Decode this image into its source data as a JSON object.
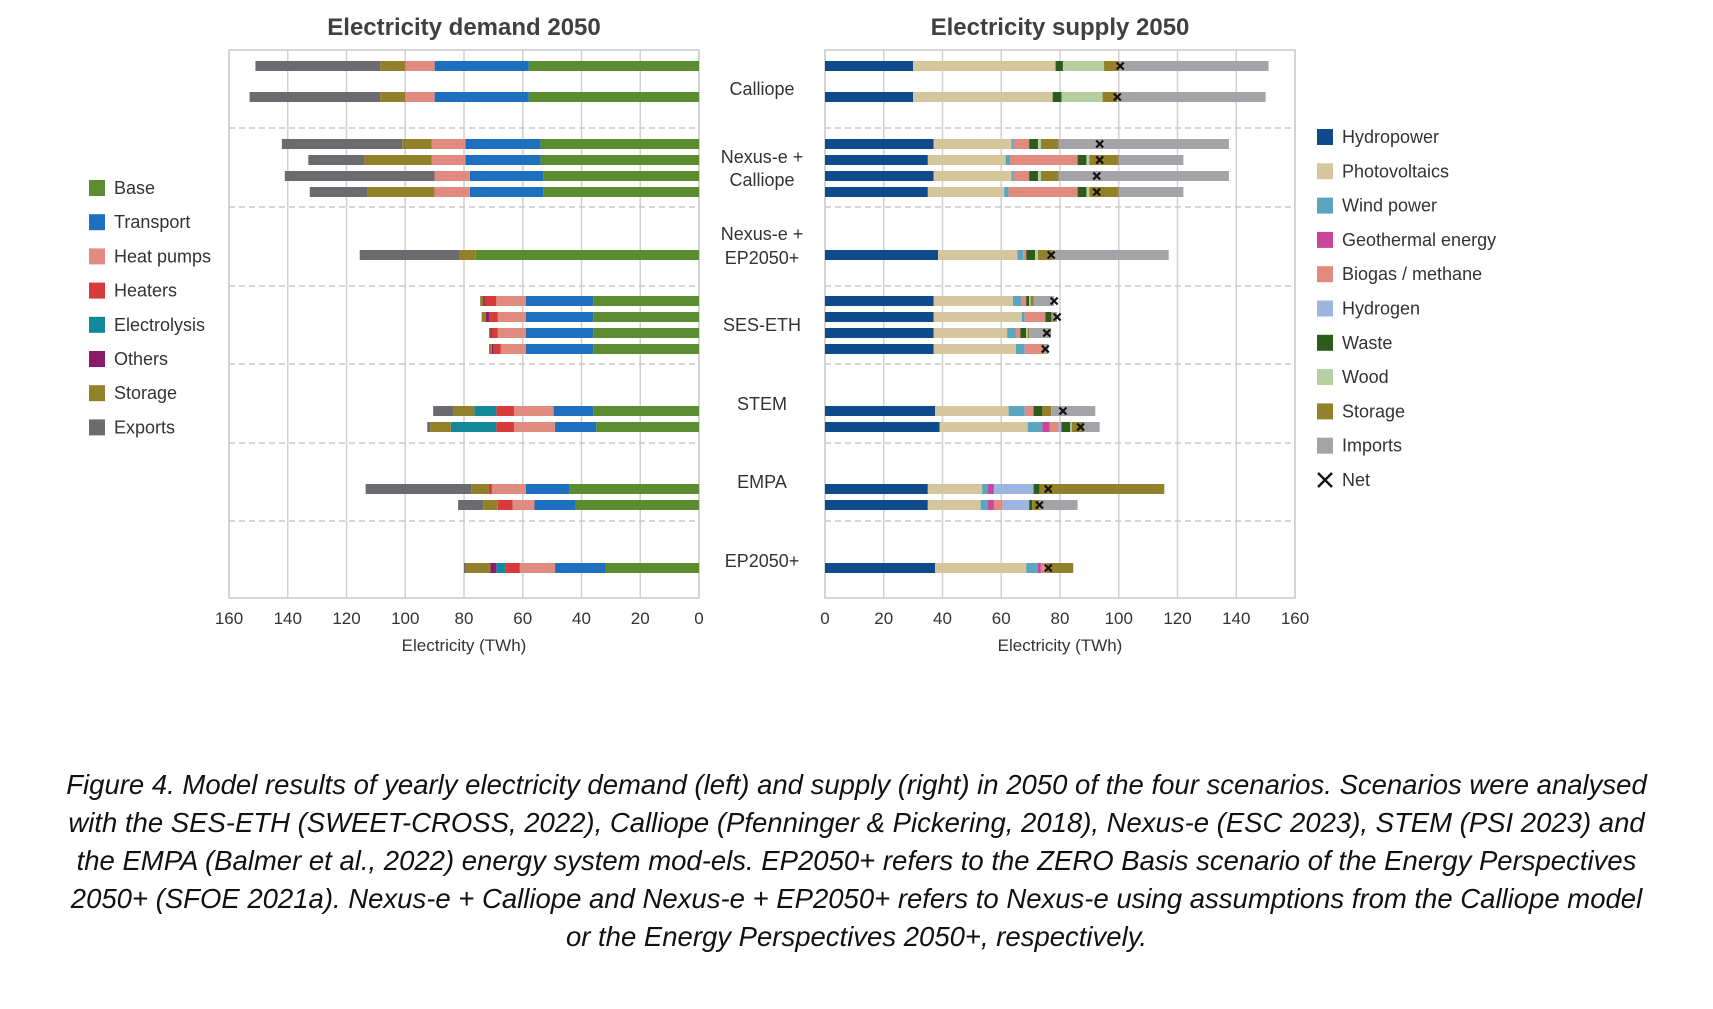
{
  "chart_data": [
    {
      "type": "bar",
      "orientation": "horizontal-reversed",
      "title": "Electricity demand 2050",
      "xlabel": "Electricity (TWh)",
      "xlim": [
        0,
        160
      ],
      "xticks": [
        160,
        140,
        120,
        100,
        80,
        60,
        40,
        20,
        0
      ],
      "grid": true,
      "legend": {
        "placement": "left",
        "entries": [
          "Base",
          "Transport",
          "Heat pumps",
          "Heaters",
          "Electrolysis",
          "Others",
          "Storage",
          "Exports"
        ]
      },
      "stack_order": [
        "Base",
        "Transport",
        "Heat pumps",
        "Heaters",
        "Electrolysis",
        "Others",
        "Storage",
        "Exports"
      ],
      "groups": [
        {
          "label": "Calliope",
          "bars": [
            {
              "Base": 58,
              "Transport": 32,
              "Heat pumps": 10,
              "Heaters": 0,
              "Electrolysis": 0,
              "Others": 0,
              "Storage": 8.5,
              "Exports": 42.5
            },
            {
              "Base": 58,
              "Transport": 32,
              "Heat pumps": 10,
              "Heaters": 0,
              "Electrolysis": 0,
              "Others": 0,
              "Storage": 8.5,
              "Exports": 44.5
            }
          ]
        },
        {
          "label": "Nexus-e + Calliope",
          "bars": [
            {
              "Base": 54,
              "Transport": 25.5,
              "Heat pumps": 11.5,
              "Heaters": 0,
              "Electrolysis": 0,
              "Others": 0,
              "Storage": 10,
              "Exports": 41
            },
            {
              "Base": 54,
              "Transport": 25.5,
              "Heat pumps": 11.5,
              "Heaters": 0,
              "Electrolysis": 0,
              "Others": 0,
              "Storage": 23,
              "Exports": 19
            },
            {
              "Base": 53,
              "Transport": 25,
              "Heat pumps": 12,
              "Heaters": 0,
              "Electrolysis": 0,
              "Others": 0,
              "Storage": 0,
              "Exports": 51
            },
            {
              "Base": 53,
              "Transport": 25,
              "Heat pumps": 12,
              "Heaters": 0,
              "Electrolysis": 0,
              "Others": 0,
              "Storage": 23,
              "Exports": 19.5
            }
          ]
        },
        {
          "label": "Nexus-e + EP2050+",
          "bars": [
            {
              "Base": 76,
              "Transport": 0,
              "Heat pumps": 0,
              "Heaters": 0,
              "Electrolysis": 0,
              "Others": 0,
              "Storage": 5.5,
              "Exports": 34
            }
          ]
        },
        {
          "label": "SES-ETH",
          "bars": [
            {
              "Base": 36,
              "Transport": 23,
              "Heat pumps": 10,
              "Heaters": 4,
              "Electrolysis": 0,
              "Others": 0.5,
              "Storage": 1,
              "Exports": 0
            },
            {
              "Base": 36,
              "Transport": 23,
              "Heat pumps": 9.5,
              "Heaters": 3,
              "Electrolysis": 0,
              "Others": 1,
              "Storage": 1.5,
              "Exports": 0
            },
            {
              "Base": 36,
              "Transport": 23,
              "Heat pumps": 9.5,
              "Heaters": 2,
              "Electrolysis": 0,
              "Others": 0.5,
              "Storage": 0.5,
              "Exports": 0
            },
            {
              "Base": 36,
              "Transport": 23,
              "Heat pumps": 8.5,
              "Heaters": 2.5,
              "Electrolysis": 0,
              "Others": 0.5,
              "Storage": 1,
              "Exports": 0
            }
          ]
        },
        {
          "label": "STEM",
          "bars": [
            {
              "Base": 36,
              "Transport": 13.5,
              "Heat pumps": 13.5,
              "Heaters": 6,
              "Electrolysis": 7.5,
              "Others": 0,
              "Storage": 7,
              "Exports": 7
            },
            {
              "Base": 35,
              "Transport": 14,
              "Heat pumps": 14,
              "Heaters": 6,
              "Electrolysis": 15.5,
              "Others": 0,
              "Storage": 7,
              "Exports": 1
            }
          ]
        },
        {
          "label": "EMPA",
          "bars": [
            {
              "Base": 44,
              "Transport": 15,
              "Heat pumps": 11.5,
              "Heaters": 1,
              "Electrolysis": 0,
              "Others": 0,
              "Storage": 6,
              "Exports": 36
            },
            {
              "Base": 42,
              "Transport": 14,
              "Heat pumps": 7.5,
              "Heaters": 5,
              "Electrolysis": 0,
              "Others": 0,
              "Storage": 5,
              "Exports": 8.5
            }
          ]
        },
        {
          "label": "EP2050+",
          "bars": [
            {
              "Base": 32,
              "Transport": 17,
              "Heat pumps": 12,
              "Heaters": 5,
              "Electrolysis": 3,
              "Others": 2,
              "Storage": 8.5,
              "Exports": 0.5
            }
          ]
        }
      ]
    },
    {
      "type": "bar",
      "orientation": "horizontal",
      "title": "Electricity supply 2050",
      "xlabel": "Electricity (TWh)",
      "xlim": [
        0,
        160
      ],
      "xticks": [
        0,
        20,
        40,
        60,
        80,
        100,
        120,
        140,
        160
      ],
      "grid": true,
      "legend": {
        "placement": "right",
        "entries": [
          "Hydropower",
          "Photovoltaics",
          "Wind power",
          "Geothermal energy",
          "Biogas / methane",
          "Hydrogen",
          "Waste",
          "Wood",
          "Storage",
          "Imports",
          "Net"
        ]
      },
      "stack_order": [
        "Hydropower",
        "Photovoltaics",
        "Wind power",
        "Geothermal energy",
        "Biogas / methane",
        "Hydrogen",
        "Waste",
        "Wood",
        "Storage",
        "Imports"
      ],
      "groups": [
        {
          "label": "Calliope",
          "bars": [
            {
              "Hydropower": 30,
              "Photovoltaics": 48.5,
              "Wind power": 0,
              "Geothermal energy": 0,
              "Biogas / methane": 0,
              "Hydrogen": 0,
              "Waste": 2.5,
              "Wood": 14,
              "Storage": 5,
              "Imports": 51,
              "Net": 100.5
            },
            {
              "Hydropower": 30,
              "Photovoltaics": 47.5,
              "Wind power": 0,
              "Geothermal energy": 0,
              "Biogas / methane": 0,
              "Hydrogen": 0,
              "Waste": 3,
              "Wood": 14,
              "Storage": 5,
              "Imports": 50.5,
              "Net": 99.5
            }
          ]
        },
        {
          "label": "Nexus-e + Calliope",
          "bars": [
            {
              "Hydropower": 37,
              "Photovoltaics": 26.5,
              "Wind power": 0.5,
              "Geothermal energy": 0,
              "Biogas / methane": 5.5,
              "Hydrogen": 0,
              "Waste": 3,
              "Wood": 1,
              "Storage": 6,
              "Imports": 58,
              "Net": 93.5
            },
            {
              "Hydropower": 35,
              "Photovoltaics": 26.5,
              "Wind power": 1.5,
              "Geothermal energy": 0,
              "Biogas / methane": 23,
              "Hydrogen": 0,
              "Waste": 3,
              "Wood": 1,
              "Storage": 10,
              "Imports": 22,
              "Net": 93.5
            },
            {
              "Hydropower": 37,
              "Photovoltaics": 26.5,
              "Wind power": 0.5,
              "Geothermal energy": 0,
              "Biogas / methane": 5.5,
              "Hydrogen": 0,
              "Waste": 3,
              "Wood": 1,
              "Storage": 6,
              "Imports": 58,
              "Net": 92.5
            },
            {
              "Hydropower": 35,
              "Photovoltaics": 26,
              "Wind power": 1.5,
              "Geothermal energy": 0,
              "Biogas / methane": 23.5,
              "Hydrogen": 0,
              "Waste": 3,
              "Wood": 1,
              "Storage": 10,
              "Imports": 22,
              "Net": 92.5
            }
          ]
        },
        {
          "label": "Nexus-e + EP2050+",
          "bars": [
            {
              "Hydropower": 38.5,
              "Photovoltaics": 27,
              "Wind power": 2,
              "Geothermal energy": 0,
              "Biogas / methane": 1,
              "Hydrogen": 0,
              "Waste": 3,
              "Wood": 1,
              "Storage": 5,
              "Imports": 39.5,
              "Net": 77
            }
          ]
        },
        {
          "label": "SES-ETH",
          "bars": [
            {
              "Hydropower": 37,
              "Photovoltaics": 27,
              "Wind power": 3,
              "Geothermal energy": 0,
              "Biogas / methane": 1.5,
              "Hydrogen": 0,
              "Waste": 1,
              "Wood": 0.5,
              "Storage": 1,
              "Imports": 7,
              "Net": 78
            },
            {
              "Hydropower": 37,
              "Photovoltaics": 30,
              "Wind power": 1,
              "Geothermal energy": 0,
              "Biogas / methane": 7,
              "Hydrogen": 0,
              "Waste": 2,
              "Wood": 0,
              "Storage": 0.5,
              "Imports": 1.5,
              "Net": 79
            },
            {
              "Hydropower": 37,
              "Photovoltaics": 25,
              "Wind power": 3,
              "Geothermal energy": 0,
              "Biogas / methane": 1.5,
              "Hydrogen": 0,
              "Waste": 2,
              "Wood": 0.5,
              "Storage": 0.5,
              "Imports": 7.5,
              "Net": 75.5
            },
            {
              "Hydropower": 37,
              "Photovoltaics": 28,
              "Wind power": 3,
              "Geothermal energy": 0,
              "Biogas / methane": 6,
              "Hydrogen": 0,
              "Waste": 0,
              "Wood": 0,
              "Storage": 0.5,
              "Imports": 1.5,
              "Net": 75
            }
          ]
        },
        {
          "label": "STEM",
          "bars": [
            {
              "Hydropower": 37.5,
              "Photovoltaics": 25,
              "Wind power": 5.5,
              "Geothermal energy": 0,
              "Biogas / methane": 3,
              "Hydrogen": 0,
              "Waste": 3,
              "Wood": 0,
              "Storage": 3,
              "Imports": 15,
              "Net": 81
            },
            {
              "Hydropower": 39,
              "Photovoltaics": 30,
              "Wind power": 5,
              "Geothermal energy": 2.5,
              "Biogas / methane": 3,
              "Hydrogen": 1,
              "Waste": 3,
              "Wood": 0.5,
              "Storage": 4,
              "Imports": 5.5,
              "Net": 87
            }
          ]
        },
        {
          "label": "EMPA",
          "bars": [
            {
              "Hydropower": 35,
              "Photovoltaics": 18.5,
              "Wind power": 2,
              "Geothermal energy": 2,
              "Biogas / methane": 0,
              "Hydrogen": 13.5,
              "Waste": 2,
              "Wood": 0,
              "Storage": 42.5,
              "Imports": 0,
              "Net": 76
            },
            {
              "Hydropower": 35,
              "Photovoltaics": 18,
              "Wind power": 2.5,
              "Geothermal energy": 2,
              "Biogas / methane": 3,
              "Hydrogen": 9,
              "Waste": 1,
              "Wood": 0,
              "Storage": 2.5,
              "Imports": 13,
              "Net": 73
            }
          ]
        },
        {
          "label": "EP2050+",
          "bars": [
            {
              "Hydropower": 37.5,
              "Photovoltaics": 31,
              "Wind power": 4,
              "Geothermal energy": 1,
              "Biogas / methane": 2,
              "Hydrogen": 0,
              "Waste": 0,
              "Wood": 0,
              "Storage": 9,
              "Imports": 0,
              "Net": 76
            }
          ]
        }
      ]
    }
  ],
  "colors": {
    "Base": "#5b8c2f",
    "Transport": "#1e6fc0",
    "Heat pumps": "#e08a80",
    "Heaters": "#d63a3a",
    "Electrolysis": "#14889b",
    "Others": "#8a1a6a",
    "Storage": "#93802a",
    "Exports": "#6b6b6f",
    "Hydropower": "#0e4a8c",
    "Photovoltaics": "#d6c69e",
    "Wind power": "#5ba6bf",
    "Geothermal energy": "#c9469b",
    "Biogas / methane": "#e08a80",
    "Hydrogen": "#9cb6e0",
    "Waste": "#2e5a1c",
    "Wood": "#b5cfa0",
    "Imports": "#a4a4a8",
    "Net": "#111111",
    "grid": "#d0d0d0",
    "separator": "#c8c8c8",
    "frame": "#c8c8c8"
  },
  "caption": "Figure 4. Model results of yearly electricity demand (left) and supply (right) in 2050 of the four scenarios. Scenarios were analysed with the SES-ETH (SWEET-CROSS, 2022), Calliope (Pfenninger & Pickering, 2018), Nexus-e (ESC 2023), STEM (PSI 2023) and the EMPA (Balmer et al., 2022) energy system mod-els. EP2050+ refers to the ZERO Basis scenario of the Energy Perspectives 2050+ (SFOE 2021a). Nexus-e + Calliope and Nexus-e + EP2050+ refers to Nexus-e using assumptions from the Calliope model or the Energy Perspectives 2050+, respectively."
}
